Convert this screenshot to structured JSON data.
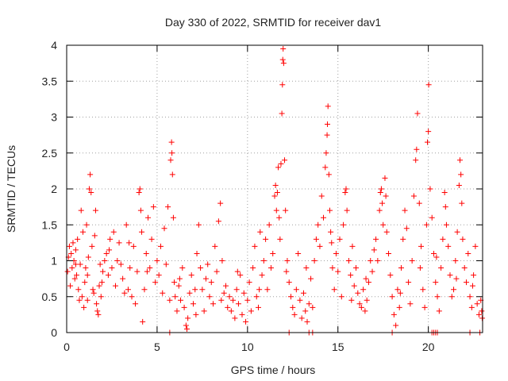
{
  "chart_data": {
    "type": "scatter",
    "title": "Day 330 of 2022, SRMTID for receiver dav1",
    "xlabel": "GPS time / hours",
    "ylabel": "SRMTID / TECUs",
    "xlim": [
      0,
      23
    ],
    "ylim": [
      0,
      4
    ],
    "xticks": [
      0,
      5,
      10,
      15,
      20
    ],
    "yticks": [
      0,
      0.5,
      1,
      1.5,
      2,
      2.5,
      3,
      3.5,
      4
    ],
    "xtick_labels": [
      "0",
      "5",
      "10",
      "15",
      "20"
    ],
    "ytick_labels": [
      "0",
      "0.5",
      "1",
      "1.5",
      "2",
      "2.5",
      "3",
      "3.5",
      "4"
    ],
    "grid": true,
    "marker": "+",
    "color": "#ff0000",
    "series": [
      {
        "name": "SRMTID",
        "points": [
          [
            0.05,
            0.85
          ],
          [
            0.1,
            1.05
          ],
          [
            0.15,
            1.2
          ],
          [
            0.2,
            0.65
          ],
          [
            0.25,
            1.1
          ],
          [
            0.3,
            0.9
          ],
          [
            0.35,
            1.25
          ],
          [
            0.4,
            1.0
          ],
          [
            0.45,
            0.75
          ],
          [
            0.5,
            1.15
          ],
          [
            0.55,
            0.8
          ],
          [
            0.6,
            1.3
          ],
          [
            0.65,
            0.6
          ],
          [
            0.7,
            0.45
          ],
          [
            0.75,
            0.95
          ],
          [
            0.8,
            1.7
          ],
          [
            0.85,
            0.5
          ],
          [
            0.9,
            1.4
          ],
          [
            0.95,
            0.35
          ],
          [
            1.0,
            0.7
          ],
          [
            1.05,
            0.9
          ],
          [
            1.1,
            1.5
          ],
          [
            1.15,
            0.8
          ],
          [
            1.2,
            1.05
          ],
          [
            1.25,
            2.0
          ],
          [
            1.3,
            2.2
          ],
          [
            1.35,
            1.95
          ],
          [
            1.4,
            1.2
          ],
          [
            1.45,
            0.6
          ],
          [
            1.5,
            0.55
          ],
          [
            1.55,
            1.35
          ],
          [
            1.6,
            1.7
          ],
          [
            1.65,
            0.4
          ],
          [
            1.7,
            0.3
          ],
          [
            1.75,
            0.25
          ],
          [
            1.8,
            0.65
          ],
          [
            1.85,
            0.95
          ],
          [
            1.9,
            0.5
          ],
          [
            1.95,
            0.7
          ],
          [
            2.0,
            0.85
          ],
          [
            2.1,
            1.0
          ],
          [
            2.2,
            1.1
          ],
          [
            2.3,
            0.8
          ],
          [
            2.4,
            1.3
          ],
          [
            2.5,
            0.9
          ],
          [
            2.6,
            1.4
          ],
          [
            2.7,
            0.65
          ],
          [
            2.8,
            1.0
          ],
          [
            2.9,
            1.25
          ],
          [
            3.0,
            0.95
          ],
          [
            3.1,
            0.75
          ],
          [
            3.2,
            0.55
          ],
          [
            3.3,
            1.5
          ],
          [
            3.4,
            0.6
          ],
          [
            3.5,
            0.9
          ],
          [
            3.6,
            0.5
          ],
          [
            3.7,
            1.2
          ],
          [
            3.8,
            0.4
          ],
          [
            3.9,
            0.85
          ],
          [
            4.0,
            1.95
          ],
          [
            4.05,
            2.0
          ],
          [
            4.1,
            1.7
          ],
          [
            4.15,
            1.4
          ],
          [
            4.2,
            0.15
          ],
          [
            4.3,
            0.6
          ],
          [
            4.4,
            1.1
          ],
          [
            4.5,
            1.6
          ],
          [
            4.6,
            0.9
          ],
          [
            4.7,
            1.3
          ],
          [
            4.8,
            1.75
          ],
          [
            4.9,
            0.7
          ],
          [
            5.0,
            1.0
          ],
          [
            5.1,
            0.8
          ],
          [
            5.2,
            1.2
          ],
          [
            5.3,
            0.55
          ],
          [
            5.4,
            1.45
          ],
          [
            5.5,
            0.95
          ],
          [
            5.6,
            1.75
          ],
          [
            5.7,
            0.45
          ],
          [
            5.75,
            2.4
          ],
          [
            5.8,
            2.65
          ],
          [
            5.82,
            2.5
          ],
          [
            5.85,
            2.2
          ],
          [
            5.9,
            1.6
          ],
          [
            5.95,
            0.7
          ],
          [
            6.0,
            0.5
          ],
          [
            6.1,
            0.3
          ],
          [
            6.2,
            0.65
          ],
          [
            6.3,
            0.45
          ],
          [
            6.4,
            0.9
          ],
          [
            6.5,
            0.35
          ],
          [
            6.6,
            0.1
          ],
          [
            6.65,
            0.05
          ],
          [
            6.7,
            0.2
          ],
          [
            6.8,
            0.55
          ],
          [
            6.9,
            0.8
          ],
          [
            7.0,
            0.4
          ],
          [
            7.1,
            0.6
          ],
          [
            7.2,
            1.1
          ],
          [
            7.3,
            1.5
          ],
          [
            7.4,
            0.9
          ],
          [
            7.5,
            0.6
          ],
          [
            7.6,
            0.3
          ],
          [
            7.7,
            0.75
          ],
          [
            7.8,
            0.95
          ],
          [
            7.9,
            0.5
          ],
          [
            8.0,
            0.7
          ],
          [
            8.1,
            0.4
          ],
          [
            8.2,
            1.2
          ],
          [
            8.3,
            0.85
          ],
          [
            8.4,
            1.55
          ],
          [
            8.5,
            1.8
          ],
          [
            8.6,
            1.0
          ],
          [
            8.7,
            0.55
          ],
          [
            8.8,
            0.65
          ],
          [
            8.9,
            0.35
          ],
          [
            9.0,
            0.5
          ],
          [
            9.1,
            0.3
          ],
          [
            9.2,
            0.45
          ],
          [
            9.3,
            0.2
          ],
          [
            9.4,
            0.6
          ],
          [
            9.5,
            0.4
          ],
          [
            9.6,
            0.8
          ],
          [
            9.7,
            0.25
          ],
          [
            9.8,
            0.55
          ],
          [
            9.9,
            0.15
          ],
          [
            10.0,
            0.45
          ],
          [
            10.1,
            0.7
          ],
          [
            10.2,
            0.3
          ],
          [
            10.3,
            0.9
          ],
          [
            10.4,
            1.2
          ],
          [
            10.5,
            0.5
          ],
          [
            10.6,
            0.35
          ],
          [
            10.7,
            1.4
          ],
          [
            10.8,
            0.8
          ],
          [
            10.9,
            1.0
          ],
          [
            11.0,
            1.3
          ],
          [
            11.1,
            0.6
          ],
          [
            11.2,
            1.5
          ],
          [
            11.3,
            0.9
          ],
          [
            11.4,
            1.1
          ],
          [
            11.5,
            1.9
          ],
          [
            11.55,
            2.05
          ],
          [
            11.6,
            1.7
          ],
          [
            11.65,
            1.95
          ],
          [
            11.7,
            2.3
          ],
          [
            11.75,
            1.6
          ],
          [
            11.8,
            1.3
          ],
          [
            11.85,
            2.35
          ],
          [
            11.9,
            3.05
          ],
          [
            11.93,
            3.45
          ],
          [
            11.95,
            3.8
          ],
          [
            11.97,
            3.95
          ],
          [
            12.0,
            3.75
          ],
          [
            12.05,
            2.4
          ],
          [
            12.1,
            1.7
          ],
          [
            12.2,
            1.0
          ],
          [
            12.3,
            0.7
          ],
          [
            12.4,
            0.5
          ],
          [
            12.5,
            0.35
          ],
          [
            12.6,
            0.25
          ],
          [
            12.7,
            0.6
          ],
          [
            12.8,
            1.1
          ],
          [
            12.9,
            0.45
          ],
          [
            13.0,
            0.2
          ],
          [
            13.1,
            0.55
          ],
          [
            13.2,
            0.3
          ],
          [
            13.3,
            0.15
          ],
          [
            13.4,
            0.4
          ],
          [
            13.5,
            0.75
          ],
          [
            13.6,
            0.35
          ],
          [
            13.7,
            1.0
          ],
          [
            13.8,
            1.3
          ],
          [
            13.9,
            1.5
          ],
          [
            14.0,
            1.2
          ],
          [
            14.1,
            1.9
          ],
          [
            14.2,
            1.6
          ],
          [
            14.3,
            2.3
          ],
          [
            14.35,
            2.5
          ],
          [
            14.4,
            2.75
          ],
          [
            14.42,
            2.9
          ],
          [
            14.45,
            3.15
          ],
          [
            14.5,
            2.2
          ],
          [
            14.55,
            1.7
          ],
          [
            14.6,
            1.4
          ],
          [
            14.7,
            0.9
          ],
          [
            14.8,
            0.6
          ],
          [
            14.9,
            1.1
          ],
          [
            15.0,
            0.85
          ],
          [
            15.1,
            1.3
          ],
          [
            15.2,
            0.5
          ],
          [
            15.3,
            1.5
          ],
          [
            15.4,
            1.95
          ],
          [
            15.45,
            2.0
          ],
          [
            15.5,
            1.7
          ],
          [
            15.6,
            1.0
          ],
          [
            15.7,
            0.8
          ],
          [
            15.8,
            1.2
          ],
          [
            15.9,
            0.65
          ],
          [
            16.0,
            0.9
          ],
          [
            16.1,
            0.55
          ],
          [
            16.2,
            0.4
          ],
          [
            16.3,
            0.35
          ],
          [
            16.4,
            0.6
          ],
          [
            16.5,
            0.3
          ],
          [
            16.6,
            0.45
          ],
          [
            16.7,
            0.7
          ],
          [
            16.8,
            1.0
          ],
          [
            16.9,
            0.85
          ],
          [
            17.0,
            1.15
          ],
          [
            17.1,
            1.3
          ],
          [
            17.2,
            1.0
          ],
          [
            17.3,
            1.7
          ],
          [
            17.35,
            1.95
          ],
          [
            17.4,
            2.0
          ],
          [
            17.45,
            1.8
          ],
          [
            17.5,
            1.5
          ],
          [
            17.6,
            2.15
          ],
          [
            17.65,
            1.9
          ],
          [
            17.7,
            1.4
          ],
          [
            17.8,
            1.1
          ],
          [
            17.9,
            0.8
          ],
          [
            18.0,
            0.5
          ],
          [
            18.1,
            0.25
          ],
          [
            18.2,
            0.1
          ],
          [
            18.3,
            0.6
          ],
          [
            18.4,
            0.35
          ],
          [
            18.5,
            0.9
          ],
          [
            18.6,
            1.3
          ],
          [
            18.7,
            1.7
          ],
          [
            18.8,
            1.45
          ],
          [
            18.9,
            0.7
          ],
          [
            19.0,
            0.4
          ],
          [
            19.1,
            1.0
          ],
          [
            19.2,
            1.9
          ],
          [
            19.3,
            2.4
          ],
          [
            19.35,
            2.55
          ],
          [
            19.4,
            3.05
          ],
          [
            19.5,
            1.8
          ],
          [
            19.6,
            1.2
          ],
          [
            19.7,
            0.6
          ],
          [
            19.8,
            0.35
          ],
          [
            19.9,
            1.5
          ],
          [
            19.95,
            2.65
          ],
          [
            20.0,
            2.8
          ],
          [
            20.02,
            3.45
          ],
          [
            20.1,
            2.0
          ],
          [
            20.2,
            1.6
          ],
          [
            20.3,
            1.1
          ],
          [
            20.4,
            0.7
          ],
          [
            20.5,
            0.5
          ],
          [
            20.6,
            0.3
          ],
          [
            20.7,
            0.9
          ],
          [
            20.8,
            1.3
          ],
          [
            20.9,
            1.95
          ],
          [
            20.95,
            1.75
          ],
          [
            21.0,
            1.5
          ],
          [
            21.1,
            1.2
          ],
          [
            21.2,
            0.8
          ],
          [
            21.3,
            0.5
          ],
          [
            21.4,
            0.6
          ],
          [
            21.5,
            1.0
          ],
          [
            21.6,
            1.4
          ],
          [
            21.7,
            2.05
          ],
          [
            21.75,
            2.4
          ],
          [
            21.8,
            2.2
          ],
          [
            21.85,
            1.8
          ],
          [
            21.9,
            1.3
          ],
          [
            22.0,
            0.9
          ],
          [
            22.1,
            0.7
          ],
          [
            22.2,
            1.1
          ],
          [
            22.3,
            0.5
          ],
          [
            22.4,
            0.35
          ],
          [
            22.5,
            0.8
          ],
          [
            22.6,
            1.2
          ],
          [
            22.7,
            0.4
          ],
          [
            22.8,
            0.25
          ],
          [
            22.9,
            0.45
          ],
          [
            22.95,
            0.3
          ],
          [
            22.98,
            0.2
          ],
          [
            0.5,
            0.95
          ],
          [
            1.15,
            0.45
          ],
          [
            2.35,
            1.15
          ],
          [
            3.45,
            1.25
          ],
          [
            4.45,
            0.85
          ],
          [
            6.25,
            0.75
          ],
          [
            7.15,
            0.25
          ],
          [
            8.55,
            0.45
          ],
          [
            9.45,
            0.85
          ],
          [
            10.65,
            0.6
          ],
          [
            12.15,
            0.85
          ],
          [
            13.25,
            0.9
          ],
          [
            14.65,
            1.25
          ],
          [
            15.75,
            0.45
          ],
          [
            16.55,
            0.75
          ],
          [
            18.45,
            0.55
          ],
          [
            19.55,
            0.9
          ],
          [
            20.45,
            1.05
          ],
          [
            21.55,
            0.75
          ],
          [
            22.45,
            0.65
          ],
          [
            5.7,
            0.0
          ],
          [
            12.3,
            0.0
          ],
          [
            13.4,
            0.0
          ],
          [
            13.6,
            0.0
          ],
          [
            18.0,
            0.0
          ],
          [
            20.2,
            0.0
          ],
          [
            20.3,
            0.0
          ],
          [
            20.4,
            0.0
          ],
          [
            20.5,
            0.0
          ],
          [
            22.3,
            0.0
          ],
          [
            22.85,
            0.0
          ]
        ]
      }
    ]
  }
}
